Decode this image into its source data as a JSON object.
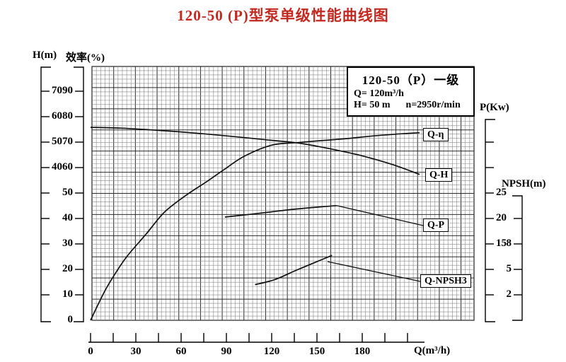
{
  "title": "120-50 (P)型泵单级性能曲线图",
  "info_box": {
    "model": "120-50（P）一级",
    "flow": "Q= 120m³/h",
    "head": "H= 50 m",
    "speed": "n=2950r/min"
  },
  "colors": {
    "title": "#c4281f",
    "curve": "#111111"
  },
  "chart_data": {
    "type": "line",
    "title": "120-50 (P)型泵单级性能曲线图",
    "grid": "fine graph paper, major every 5 minor cells",
    "x_axis": {
      "label": "Q(m³/h)",
      "tick_labels": [
        "0",
        "30",
        "60",
        "90",
        "120",
        "150",
        "180"
      ],
      "tick_values": [
        0,
        30,
        60,
        90,
        120,
        150,
        180
      ],
      "minor_tick_step": 15,
      "range": [
        0,
        210
      ]
    },
    "y_axes": [
      {
        "id": "h",
        "label": "H(m)",
        "side": "left",
        "tick_labels": [
          "70",
          "60",
          "50",
          "40"
        ],
        "tick_values": [
          70,
          60,
          50,
          40
        ]
      },
      {
        "id": "eff",
        "label": "效率(%)",
        "side": "left",
        "tick_labels": [
          "90",
          "80",
          "70",
          "60",
          "50",
          "40",
          "30",
          "20",
          "10",
          "0"
        ],
        "tick_values": [
          90,
          80,
          70,
          60,
          50,
          40,
          30,
          20,
          10,
          0
        ]
      },
      {
        "id": "p",
        "label": "P(Kw)",
        "side": "right",
        "tick_labels": [
          "25",
          "20",
          "15"
        ],
        "tick_values": [
          25,
          20,
          15
        ]
      },
      {
        "id": "npsh",
        "label": "NPSH(m)",
        "side": "right",
        "tick_labels": [
          "8",
          "5",
          "2"
        ],
        "tick_values": [
          8,
          5,
          2
        ]
      }
    ],
    "series": [
      {
        "name": "Q-H",
        "axis": "h",
        "label": "Q-H",
        "points": [
          [
            0,
            55.8
          ],
          [
            20,
            55.5
          ],
          [
            40,
            54.8
          ],
          [
            60,
            54.0
          ],
          [
            80,
            53.0
          ],
          [
            100,
            51.9
          ],
          [
            120,
            50.7
          ],
          [
            137,
            49.7
          ],
          [
            150,
            48.4
          ],
          [
            165,
            46.6
          ],
          [
            180,
            44.6
          ],
          [
            200,
            41.2
          ],
          [
            218,
            37.3
          ]
        ]
      },
      {
        "name": "Q-η",
        "axis": "eff",
        "label": "Q-η",
        "points": [
          [
            0,
            0
          ],
          [
            9,
            11
          ],
          [
            16,
            18
          ],
          [
            24,
            25
          ],
          [
            37,
            34
          ],
          [
            49,
            42.5
          ],
          [
            63,
            49
          ],
          [
            77,
            54.5
          ],
          [
            88,
            59
          ],
          [
            102,
            64.5
          ],
          [
            120,
            68.8
          ],
          [
            137,
            69.8
          ],
          [
            155,
            70.7
          ],
          [
            170,
            71.4
          ],
          [
            185,
            72.3
          ],
          [
            202,
            73.1
          ],
          [
            218,
            73.7
          ]
        ]
      },
      {
        "name": "Q-P",
        "axis": "p",
        "label": "Q-P",
        "points": [
          [
            89,
            20.4
          ],
          [
            105,
            20.9
          ],
          [
            120,
            21.4
          ],
          [
            135,
            21.9
          ],
          [
            150,
            22.3
          ],
          [
            163,
            22.6
          ]
        ]
      },
      {
        "name": "Q-NPSH3",
        "axis": "npsh",
        "label": "Q-NPSH3",
        "points": [
          [
            109,
            3.3
          ],
          [
            122,
            3.9
          ],
          [
            136,
            5.0
          ],
          [
            148,
            5.9
          ],
          [
            160,
            6.8
          ]
        ]
      }
    ]
  }
}
